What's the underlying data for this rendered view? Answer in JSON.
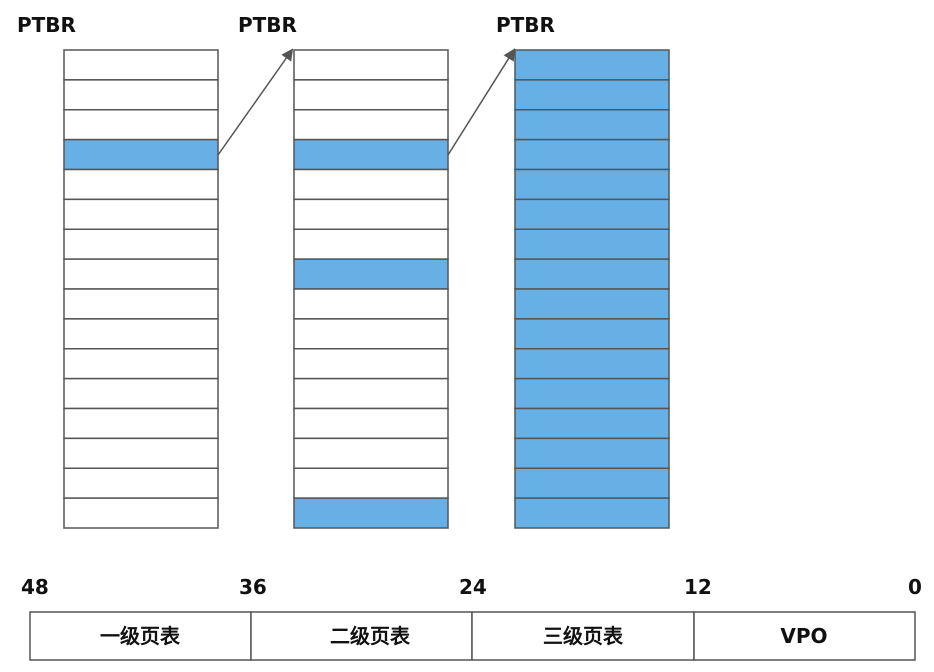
{
  "tables": [
    {
      "ptbr_label": "PTBR",
      "highlighted_entries": [
        4
      ]
    },
    {
      "ptbr_label": "PTBR",
      "highlighted_entries": [
        4,
        8,
        16
      ]
    },
    {
      "ptbr_label": "PTBR",
      "highlighted_entries": "all"
    }
  ],
  "entry_count": 16,
  "colors": {
    "highlight": "#66b0e6",
    "empty": "#ffffff",
    "stroke": "#555555",
    "arrow": "#555555"
  },
  "bit_labels": [
    "48",
    "36",
    "24",
    "12",
    "0"
  ],
  "fields": [
    {
      "label": "一级页表"
    },
    {
      "label": "二级页表"
    },
    {
      "label": "三级页表"
    },
    {
      "label": "VPO"
    }
  ]
}
